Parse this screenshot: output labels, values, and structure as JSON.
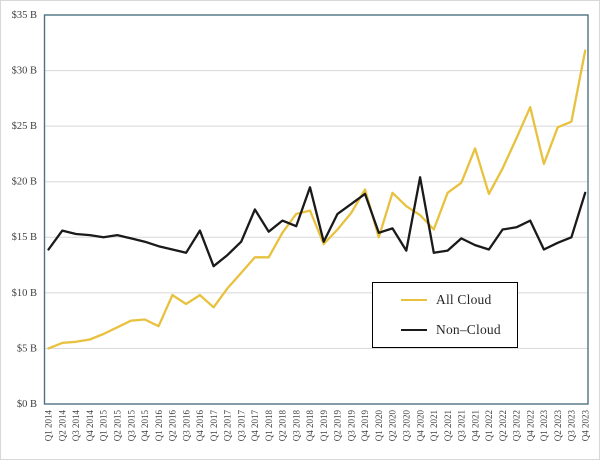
{
  "chart_data": {
    "type": "line",
    "title": "",
    "categories": [
      "Q1 2014",
      "Q2 2014",
      "Q3 2014",
      "Q4 2014",
      "Q1 2015",
      "Q2 2015",
      "Q3 2015",
      "Q4 2015",
      "Q1 2016",
      "Q2 2016",
      "Q3 2016",
      "Q4 2016",
      "Q1 2017",
      "Q2 2017",
      "Q3 2017",
      "Q4 2017",
      "Q1 2018",
      "Q2 2018",
      "Q3 2018",
      "Q4 2018",
      "Q1 2019",
      "Q2 2019",
      "Q3 2019",
      "Q4 2019",
      "Q1 2020",
      "Q2 2020",
      "Q3 2020",
      "Q4 2020",
      "Q1 2021",
      "Q2 2021",
      "Q3 2021",
      "Q4 2021",
      "Q1 2022",
      "Q2 2022",
      "Q3 2022",
      "Q4 2022",
      "Q1 2023",
      "Q2 2023",
      "Q3 2023",
      "Q4 2023"
    ],
    "series": [
      {
        "name": "All Cloud",
        "color": "#E8C13E",
        "values": [
          5.0,
          5.5,
          5.6,
          5.8,
          6.3,
          6.9,
          7.5,
          7.6,
          7.0,
          9.8,
          9.0,
          9.8,
          8.7,
          10.4,
          11.8,
          13.2,
          13.2,
          15.4,
          17.1,
          17.4,
          14.4,
          15.7,
          17.2,
          19.3,
          15.0,
          19.0,
          17.8,
          17.0,
          15.7,
          19.0,
          19.9,
          23.0,
          18.9,
          21.2,
          23.9,
          26.7,
          21.6,
          24.9,
          25.4,
          31.8
        ]
      },
      {
        "name": "Non–Cloud",
        "color": "#1A1A1A",
        "values": [
          13.9,
          15.6,
          15.3,
          15.2,
          15.0,
          15.2,
          14.9,
          14.6,
          14.2,
          13.9,
          13.6,
          15.6,
          12.4,
          13.4,
          14.6,
          17.5,
          15.5,
          16.5,
          16.0,
          19.5,
          14.6,
          17.1,
          18.0,
          18.9,
          15.4,
          15.8,
          13.8,
          20.4,
          13.6,
          13.8,
          14.9,
          14.3,
          13.9,
          15.7,
          15.9,
          16.5,
          13.9,
          14.5,
          15.0,
          19.0
        ]
      }
    ],
    "ylim": [
      0,
      35
    ],
    "y_tick_step": 5,
    "y_tick_labels": [
      "$0 B",
      "$5 B",
      "$10 B",
      "$15 B",
      "$20 B",
      "$25 B",
      "$30 B",
      "$35 B"
    ],
    "xlabel": "",
    "ylabel": "",
    "grid": "horizontal",
    "legend_position": "inside-lower-right"
  },
  "colors": {
    "plot_border": "#4E7282",
    "gridline": "#D8D8D8",
    "tick_text": "#3F3F3F",
    "background": "#FFFFFF",
    "legend_border": "#000000"
  }
}
